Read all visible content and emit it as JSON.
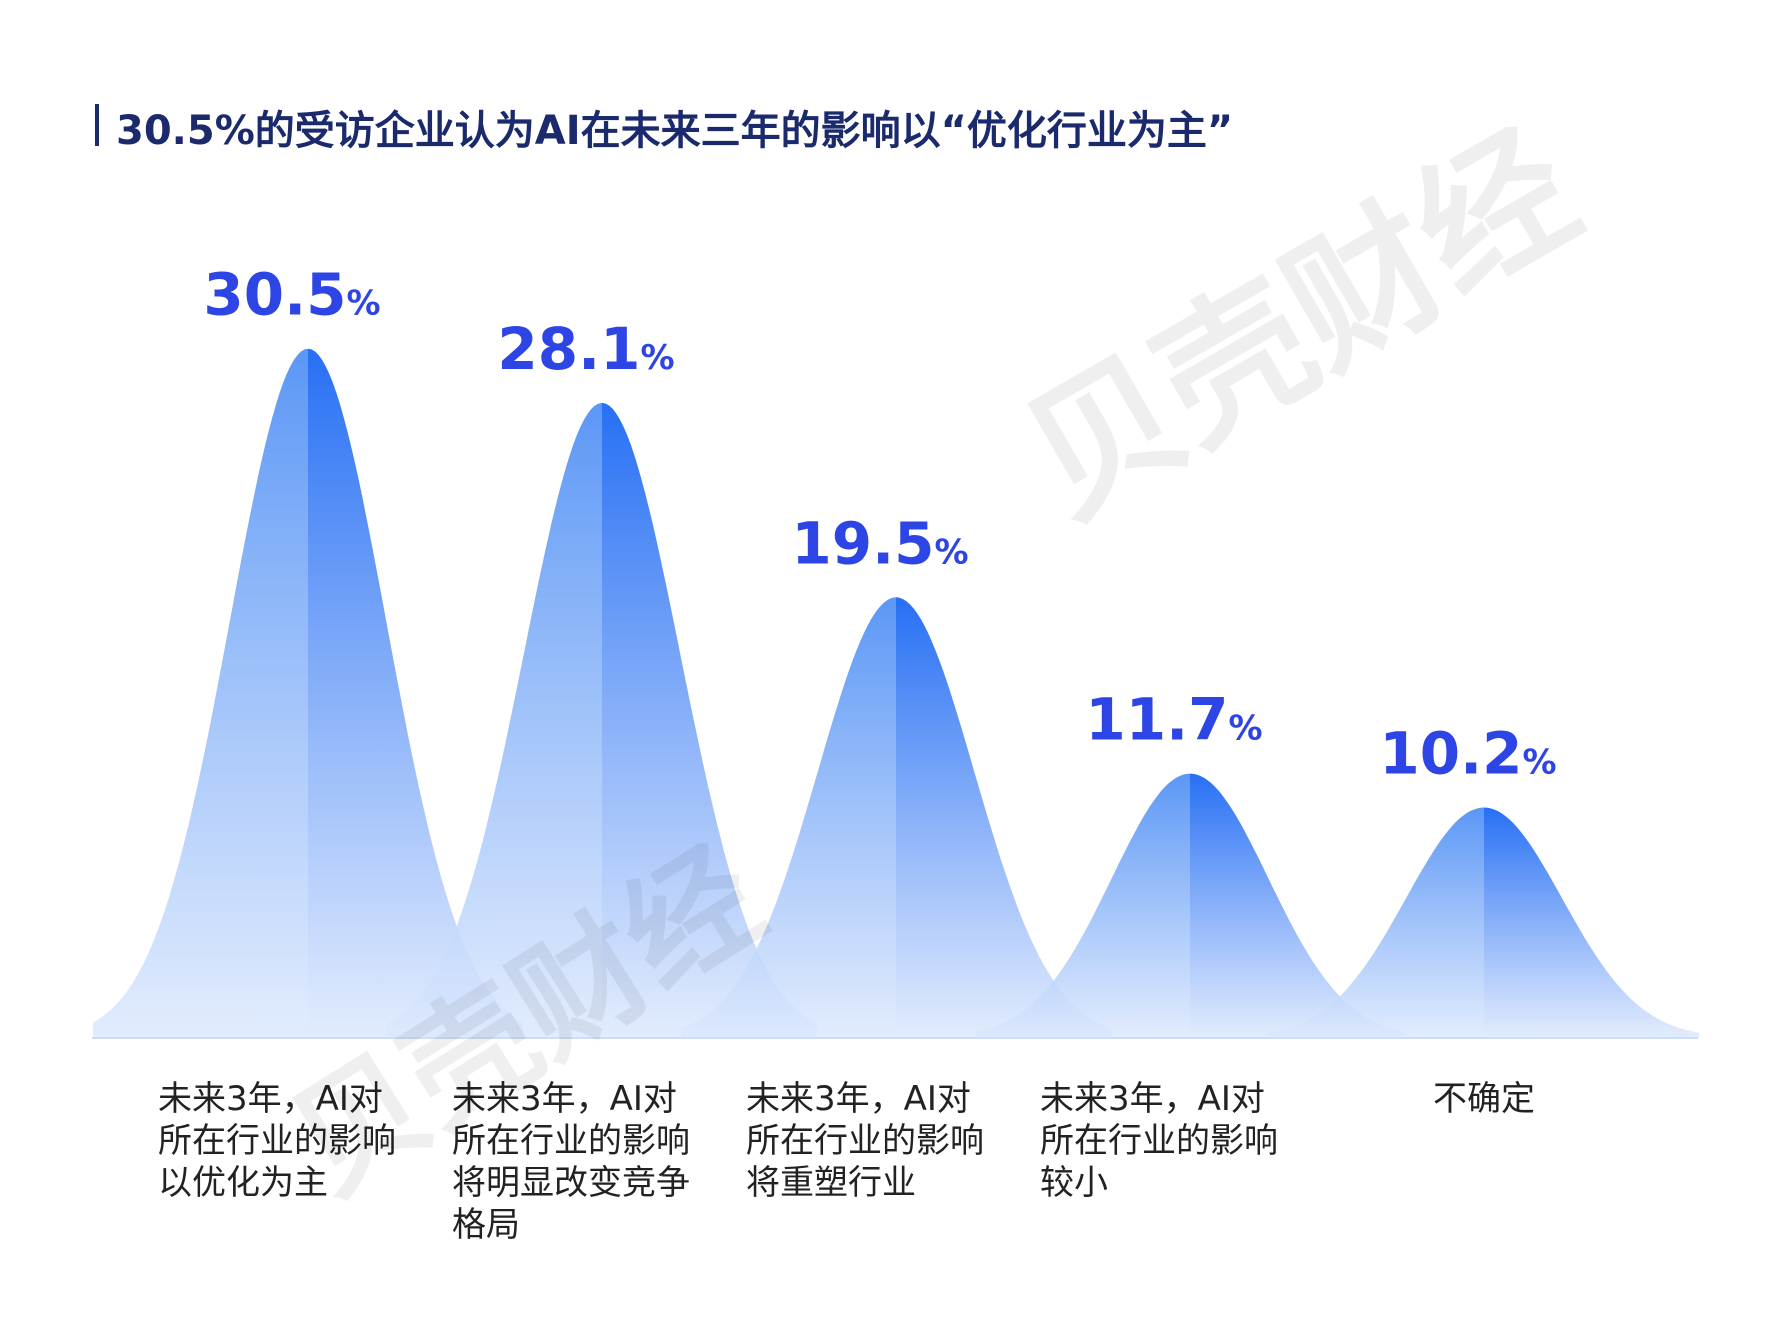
{
  "title": "30.5%的受访企业认为AI在未来三年的影响以“优化行业为主”",
  "watermark": "贝壳财经",
  "colors": {
    "title": "#1a2a6c",
    "value_label": "#2e45e6",
    "peak_dark": "#1463f3",
    "peak_light": "#4d8ef5",
    "base_fade": "#dce8fd",
    "baseline": "#d0dcf5",
    "category_text": "#222222"
  },
  "chart_data": {
    "type": "area",
    "style": "bell-curve peaks",
    "title": "30.5%的受访企业认为AI在未来三年的影响以“优化行业为主”",
    "categories": [
      "未来3年，AI对所在行业的影响以优化为主",
      "未来3年，AI对所在行业的影响将明显改变竞争格局",
      "未来3年，AI对所在行业的影响将重塑行业",
      "未来3年，AI对所在行业的影响较小",
      "不确定"
    ],
    "category_lines": [
      [
        "未来3年，AI对",
        "所在行业的影响",
        "以优化为主"
      ],
      [
        "未来3年，AI对",
        "所在行业的影响",
        "将明显改变竞争",
        "格局"
      ],
      [
        "未来3年，AI对",
        "所在行业的影响",
        "将重塑行业"
      ],
      [
        "未来3年，AI对",
        "所在行业的影响",
        "较小"
      ],
      [
        "不确定"
      ]
    ],
    "values": [
      30.5,
      28.1,
      19.5,
      11.7,
      10.2
    ],
    "value_labels": [
      "30.5",
      "28.1",
      "19.5",
      "11.7",
      "10.2"
    ],
    "unit": "%",
    "xlabel": "",
    "ylabel": "",
    "grid": false,
    "legend": "none"
  }
}
